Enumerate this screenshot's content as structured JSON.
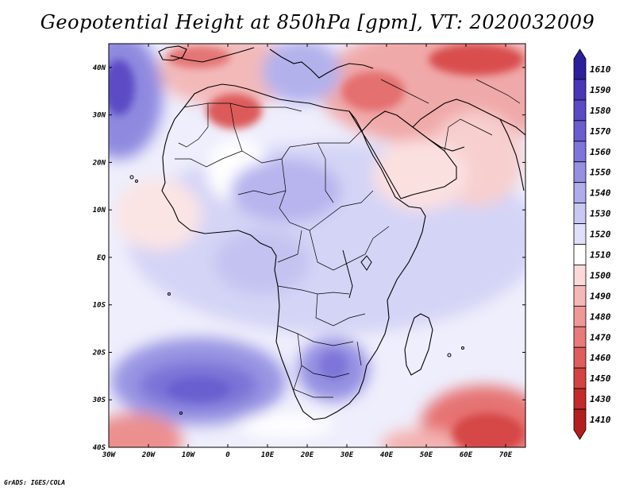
{
  "title": "Geopotential Height at 850hPa [gpm], VT: 2020032009",
  "credit": "GrADS: IGES/COLA",
  "map": {
    "lat_labels": [
      "40N",
      "30N",
      "20N",
      "10N",
      "EQ",
      "10S",
      "20S",
      "30S",
      "40S"
    ],
    "lon_labels": [
      "30W",
      "20W",
      "10W",
      "0",
      "10E",
      "20E",
      "30E",
      "40E",
      "50E",
      "60E",
      "70E"
    ]
  },
  "colorbar": {
    "levels": [
      "1610",
      "1590",
      "1580",
      "1570",
      "1560",
      "1550",
      "1540",
      "1530",
      "1520",
      "1510",
      "1500",
      "1490",
      "1480",
      "1470",
      "1460",
      "1450",
      "1430",
      "1410"
    ],
    "colors": [
      "#2b1f9c",
      "#4937b8",
      "#5a4ac4",
      "#6a5dcf",
      "#7e74d9",
      "#9590e2",
      "#aeaceb",
      "#c8c8f3",
      "#e0e0fa",
      "#ffffff",
      "#fbd9d9",
      "#f5b8b8",
      "#ef9898",
      "#e87a7a",
      "#df5d5d",
      "#d44242",
      "#c42a2a",
      "#b31d1d"
    ]
  },
  "chart_data": {
    "type": "heatmap",
    "title": "Geopotential Height at 850hPa [gpm], VT: 2020032009",
    "variable": "Geopotential Height at 850hPa",
    "units": "gpm",
    "valid_time": "2020032009",
    "lat_range": [
      -40,
      45
    ],
    "lon_range": [
      -30,
      75
    ],
    "colorbar_levels": [
      1410,
      1430,
      1450,
      1460,
      1470,
      1480,
      1490,
      1500,
      1510,
      1520,
      1530,
      1540,
      1550,
      1560,
      1570,
      1580,
      1590,
      1610
    ]
  }
}
